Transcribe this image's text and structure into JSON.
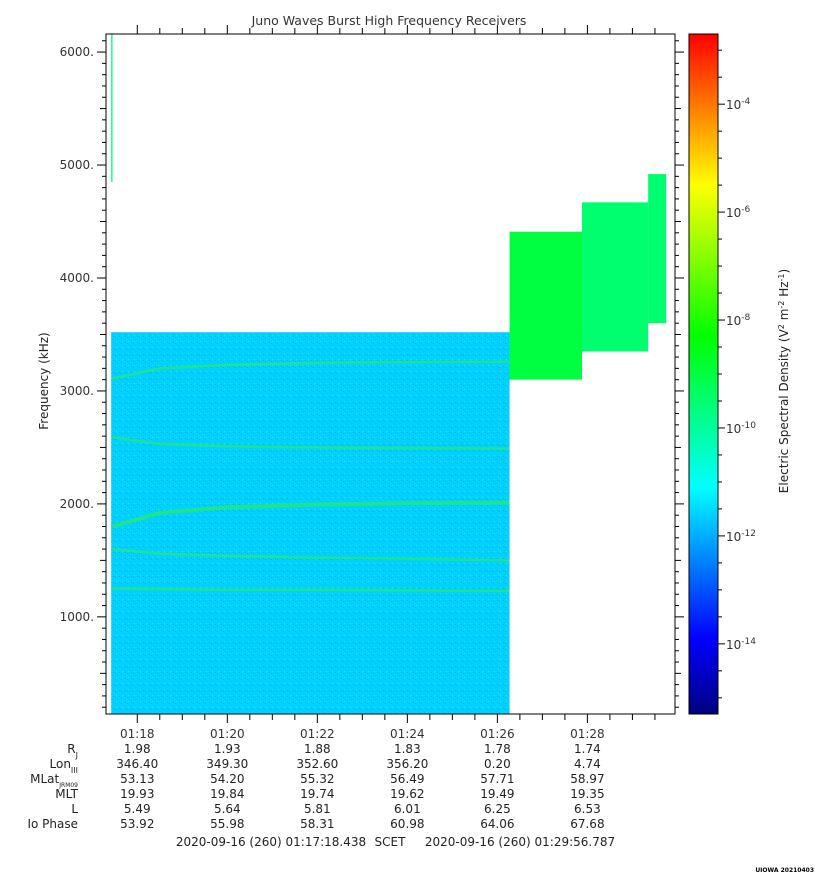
{
  "chart_data": {
    "type": "heatmap",
    "title": "Juno Waves Burst High Frequency Receivers",
    "ylabel": "Frequency (kHz)",
    "y_tick_labels": [
      "1000.",
      "2000.",
      "3000.",
      "4000.",
      "5000.",
      "6000."
    ],
    "y_ticks": [
      1000,
      2000,
      3000,
      4000,
      5000,
      6000
    ],
    "ylim": [
      140,
      6160
    ],
    "x_tick_labels": [
      "01:18",
      "01:20",
      "01:22",
      "01:24",
      "01:26",
      "01:28"
    ],
    "x_ticks_min": [
      78,
      80,
      82,
      84,
      86,
      88
    ],
    "xlim_min": [
      77.305,
      89.946
    ],
    "colorbar": {
      "label": "Electric Spectral Density (V² m⁻² Hz⁻¹)",
      "label_base": "Electric Spectral Density (V",
      "label_sup1": "2",
      "label_mid": " m",
      "label_sup2": "-2",
      "label_mid2": " Hz",
      "label_sup3": "-1",
      "label_end": ")",
      "scale": "log",
      "range_log10": [
        -15.3,
        -2.7
      ],
      "ticks": [
        {
          "base": "10",
          "exp": "-4",
          "log": -4
        },
        {
          "base": "10",
          "exp": "-6",
          "log": -6
        },
        {
          "base": "10",
          "exp": "-8",
          "log": -8
        },
        {
          "base": "10",
          "exp": "-10",
          "log": -10
        },
        {
          "base": "10",
          "exp": "-12",
          "log": -12
        },
        {
          "base": "10",
          "exp": "-14",
          "log": -14
        }
      ],
      "colormap": [
        "#000080",
        "#0000ff",
        "#0080ff",
        "#00ffff",
        "#00ff80",
        "#00ff00",
        "#80ff00",
        "#ffff00",
        "#ff8000",
        "#ff0000"
      ]
    },
    "blocks": [
      {
        "t0": 77.42,
        "t1": 86.27,
        "f0": 140,
        "f1": 3520,
        "log10_density": -11.6
      },
      {
        "t0": 86.27,
        "t1": 87.88,
        "f0": 3100,
        "f1": 4410,
        "log10_density": -9.0
      },
      {
        "t0": 87.88,
        "t1": 89.35,
        "f0": 3350,
        "f1": 4670,
        "log10_density": -9.5
      },
      {
        "t0": 89.35,
        "t1": 89.75,
        "f0": 3600,
        "f1": 4920,
        "log10_density": -9.5
      },
      {
        "t0": 77.42,
        "t1": 77.45,
        "f0": 4850,
        "f1": 6160,
        "log10_density": -9.5
      }
    ],
    "lines": [
      {
        "points": [
          [
            77.45,
            3110
          ],
          [
            78.5,
            3200
          ],
          [
            80,
            3230
          ],
          [
            82,
            3250
          ],
          [
            84,
            3255
          ],
          [
            86.27,
            3260
          ]
        ]
      },
      {
        "points": [
          [
            77.45,
            2590
          ],
          [
            78.5,
            2530
          ],
          [
            80,
            2510
          ],
          [
            82,
            2500
          ],
          [
            84,
            2495
          ],
          [
            86.27,
            2490
          ]
        ]
      },
      {
        "points": [
          [
            77.45,
            1800
          ],
          [
            78.5,
            1920
          ],
          [
            80,
            1970
          ],
          [
            82,
            1995
          ],
          [
            84,
            2005
          ],
          [
            86.27,
            2010
          ]
        ]
      },
      {
        "points": [
          [
            77.45,
            1600
          ],
          [
            78.5,
            1560
          ],
          [
            80,
            1540
          ],
          [
            82,
            1525
          ],
          [
            84,
            1515
          ],
          [
            86.27,
            1500
          ]
        ]
      },
      {
        "points": [
          [
            77.45,
            1250
          ],
          [
            80,
            1240
          ],
          [
            82,
            1240
          ],
          [
            84,
            1235
          ],
          [
            86.27,
            1230
          ]
        ]
      }
    ]
  },
  "ephemeris": {
    "rows": [
      {
        "label": "R",
        "sub": "J",
        "values": [
          "1.98",
          "1.93",
          "1.88",
          "1.83",
          "1.78",
          "1.74"
        ]
      },
      {
        "label": "Lon",
        "sub": "III",
        "values": [
          "346.40",
          "349.30",
          "352.60",
          "356.20",
          "0.20",
          "4.74"
        ]
      },
      {
        "label": "MLat",
        "sub": "JRM09",
        "values": [
          "53.13",
          "54.20",
          "55.32",
          "56.49",
          "57.71",
          "58.97"
        ]
      },
      {
        "label": "MLT",
        "sub": "",
        "values": [
          "19.93",
          "19.84",
          "19.74",
          "19.62",
          "19.49",
          "19.35"
        ]
      },
      {
        "label": "L",
        "sub": "",
        "values": [
          "5.49",
          "5.64",
          "5.81",
          "6.01",
          "6.25",
          "6.53"
        ]
      },
      {
        "label": "Io Phase",
        "sub": "",
        "values": [
          "53.92",
          "55.98",
          "58.31",
          "60.98",
          "64.06",
          "67.68"
        ]
      }
    ]
  },
  "time_range": {
    "start": "2020-09-16 (260) 01:17:18.438",
    "label": "SCET",
    "end": "2020-09-16 (260) 01:29:56.787"
  },
  "credit": "UIOWA 20210403"
}
